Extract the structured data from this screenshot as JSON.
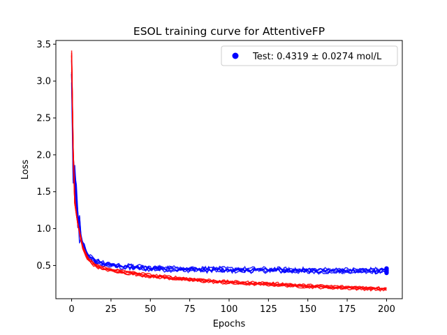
{
  "chart_data": {
    "type": "line",
    "title": "ESOL training curve for AttentiveFP",
    "xlabel": "Epochs",
    "ylabel": "Loss",
    "xlim": [
      -10,
      210
    ],
    "ylim": [
      0.05,
      3.55
    ],
    "xticks": [
      0,
      25,
      50,
      75,
      100,
      125,
      150,
      175,
      200
    ],
    "yticks": [
      0.5,
      1.0,
      1.5,
      2.0,
      2.5,
      3.0,
      3.5
    ],
    "xtick_labels": [
      "0",
      "25",
      "50",
      "75",
      "100",
      "125",
      "150",
      "175",
      "200"
    ],
    "ytick_labels": [
      "0.5",
      "1.0",
      "1.5",
      "2.0",
      "2.5",
      "3.0",
      "3.5"
    ],
    "grid": false,
    "legend_position": "upper right",
    "legend": [
      {
        "label": "Test: 0.4319 ± 0.0274 mol/L",
        "marker": "circle",
        "color": "#0000ff"
      }
    ],
    "colors": {
      "validation": "#0000ff",
      "training": "#ff0000"
    },
    "validation_runs": 5,
    "training_runs": 5,
    "validation_curve_approx": {
      "x": [
        0,
        1,
        2,
        3,
        4,
        5,
        7,
        10,
        15,
        20,
        30,
        50,
        75,
        100,
        125,
        150,
        175,
        200
      ],
      "y": [
        3.2,
        1.75,
        1.65,
        1.35,
        1.1,
        0.95,
        0.8,
        0.65,
        0.56,
        0.52,
        0.49,
        0.46,
        0.45,
        0.44,
        0.44,
        0.43,
        0.43,
        0.43
      ]
    },
    "training_curve_approx": {
      "x": [
        0,
        1,
        2,
        3,
        4,
        5,
        7,
        10,
        15,
        20,
        30,
        50,
        75,
        100,
        125,
        150,
        175,
        200
      ],
      "y": [
        3.35,
        2.0,
        1.4,
        1.2,
        1.05,
        0.95,
        0.75,
        0.6,
        0.5,
        0.46,
        0.42,
        0.36,
        0.31,
        0.27,
        0.25,
        0.22,
        0.2,
        0.18
      ]
    },
    "test_points": {
      "x": [
        200,
        200,
        200,
        200,
        200
      ],
      "y": [
        0.4,
        0.42,
        0.43,
        0.44,
        0.46
      ]
    }
  }
}
